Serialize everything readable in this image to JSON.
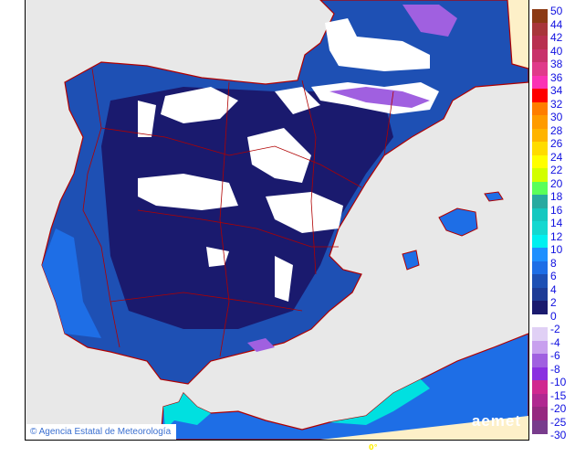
{
  "map": {
    "credit": "© Agencia Estatal de Meteorología",
    "logo": "aemet",
    "longitude_label": "0°",
    "colors": {
      "sea": "#e8e8e8",
      "land_cold": "#1a1a6e",
      "land_mid": "#1e50b4",
      "coast": "#1e6ee6",
      "warm": "#00e0e0",
      "snow": "#ffffff",
      "frost": "#c8a0ee",
      "border": "#b00000",
      "outside": "#fdf0c8"
    }
  },
  "legend": {
    "positive": {
      "labels": [
        "50",
        "44",
        "42",
        "40",
        "38",
        "36",
        "34",
        "32",
        "30",
        "28",
        "26",
        "24",
        "22",
        "20",
        "18",
        "16",
        "14",
        "12",
        "10",
        "8",
        "6",
        "4",
        "2",
        "0"
      ],
      "colors": [
        "#8c3a14",
        "#a8363a",
        "#b83050",
        "#c8326a",
        "#e03a8a",
        "#fa32b4",
        "#ff0000",
        "#ff7d00",
        "#ff9b00",
        "#ffb400",
        "#ffdc00",
        "#ffff00",
        "#d2ff00",
        "#5aff5a",
        "#28aaa0",
        "#14c8c0",
        "#14d8d0",
        "#00f0f0",
        "#1e90ff",
        "#1e6ee6",
        "#1e50b4",
        "#1e3c96",
        "#1a1a6e"
      ]
    },
    "negative": {
      "labels": [
        "-2",
        "-4",
        "-6",
        "-8",
        "-10",
        "-15",
        "-20",
        "-25",
        "-30"
      ],
      "colors": [
        "#e0d0f5",
        "#c8a0ee",
        "#a060e0",
        "#8a30e0",
        "#d02890",
        "#b02890",
        "#962880",
        "#783c8c"
      ]
    }
  }
}
